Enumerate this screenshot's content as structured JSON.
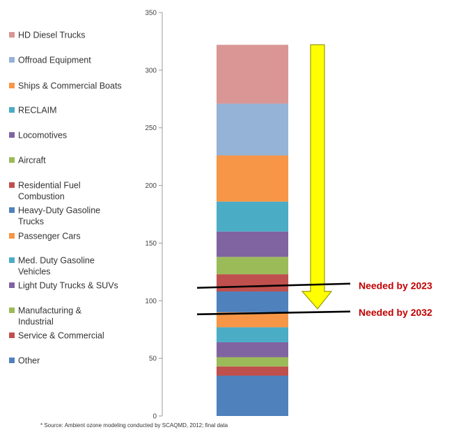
{
  "chart_data": {
    "type": "bar",
    "stacked": true,
    "ylim": [
      0,
      350
    ],
    "yticks": [
      0,
      50,
      100,
      150,
      200,
      250,
      300,
      350
    ],
    "grid": false,
    "legend_position": "left",
    "series": [
      {
        "name": "Other",
        "value": 35,
        "color": "#4f81bd"
      },
      {
        "name": "Service & Commercial",
        "value": 8,
        "color": "#c0504d"
      },
      {
        "name": "Manufacturing & Industrial",
        "value": 8,
        "color": "#9bbb59"
      },
      {
        "name": "Light Duty Trucks & SUVs",
        "value": 13,
        "color": "#8064a2"
      },
      {
        "name": "Med. Duty Gasoline Vehicles",
        "value": 13,
        "color": "#4bacc6"
      },
      {
        "name": "Passenger Cars",
        "value": 13,
        "color": "#f79646"
      },
      {
        "name": "Heavy-Duty Gasoline Trucks",
        "value": 18,
        "color": "#4f81bd"
      },
      {
        "name": "Residential Fuel Combustion",
        "value": 15,
        "color": "#c0504d"
      },
      {
        "name": "Aircraft",
        "value": 15,
        "color": "#9bbb59"
      },
      {
        "name": "Locomotives",
        "value": 22,
        "color": "#8064a2"
      },
      {
        "name": "RECLAIM",
        "value": 26,
        "color": "#4bacc6"
      },
      {
        "name": "Ships & Commercial Boats",
        "value": 40,
        "color": "#f79646"
      },
      {
        "name": "Offroad Equipment",
        "value": 45,
        "color": "#95b3d7"
      },
      {
        "name": "HD Diesel Trucks",
        "value": 51,
        "color": "#d99694"
      }
    ],
    "legend_order": [
      "HD Diesel Trucks",
      "Offroad Equipment",
      "Ships & Commercial Boats",
      "RECLAIM",
      "Locomotives",
      "Aircraft",
      "Residential Fuel Combustion",
      "Heavy-Duty Gasoline Trucks",
      "Passenger Cars",
      "Med. Duty Gasoline Vehicles",
      "Light Duty Trucks & SUVs",
      "Manufacturing & Industrial",
      "Service & Commercial",
      "Other"
    ],
    "legend_labels": [
      [
        "HD Diesel Trucks"
      ],
      [
        "Offroad Equipment"
      ],
      [
        "Ships & Commercial Boats"
      ],
      [
        "RECLAIM"
      ],
      [
        "Locomotives"
      ],
      [
        "Aircraft"
      ],
      [
        "Residential Fuel",
        "Combustion"
      ],
      [
        "Heavy-Duty Gasoline",
        "Trucks"
      ],
      [
        "Passenger Cars"
      ],
      [
        "Med. Duty Gasoline",
        "Vehicles"
      ],
      [
        "Light Duty Trucks & SUVs"
      ],
      [
        "Manufacturing &",
        "Industrial"
      ],
      [
        "Service & Commercial"
      ],
      [
        "Other"
      ]
    ],
    "targets": [
      {
        "label": "Needed by 2023",
        "value": 113
      },
      {
        "label": "Needed by 2032",
        "value": 90
      }
    ],
    "arrow": {
      "from_value": 322,
      "to_value": 93,
      "color": "#ffff00",
      "stroke": "#9a9a00"
    },
    "source_note": "* Source: Ambient ozone modeling conducted by SCAQMD, 2012; final data"
  }
}
